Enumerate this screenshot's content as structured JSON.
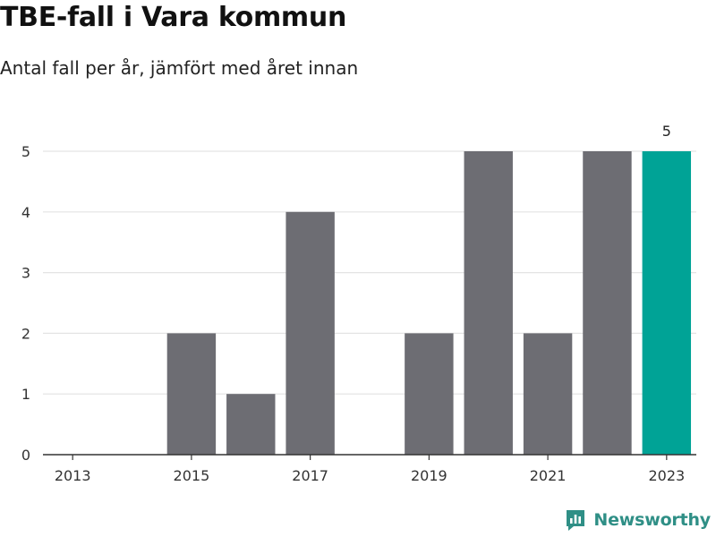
{
  "header": {
    "title": "TBE-fall i Vara kommun",
    "subtitle": "Antal fall per år, jämfört med året innan"
  },
  "brand": {
    "name": "Newsworthy",
    "icon": "bar-chart-logo-icon"
  },
  "colors": {
    "bar": "#6d6d73",
    "highlight": "#00a396",
    "grid": "#e3e3e3",
    "axis": "#333333",
    "brand": "#2f8f86"
  },
  "chart_data": {
    "type": "bar",
    "categories": [
      "2013",
      "2014",
      "2015",
      "2016",
      "2017",
      "2018",
      "2019",
      "2020",
      "2021",
      "2022",
      "2023"
    ],
    "values": [
      0,
      0,
      2,
      1,
      4,
      0,
      2,
      5,
      2,
      5,
      5
    ],
    "x_tick_labels": [
      "2013",
      "2015",
      "2017",
      "2019",
      "2021",
      "2023"
    ],
    "y_ticks": [
      0,
      1,
      2,
      3,
      4,
      5
    ],
    "ylim": [
      0,
      5
    ],
    "highlight_index": 10,
    "highlight_label": "5",
    "grid": true,
    "legend": "none"
  }
}
